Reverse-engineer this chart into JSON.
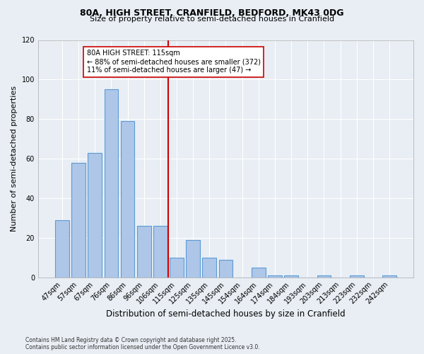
{
  "title1": "80A, HIGH STREET, CRANFIELD, BEDFORD, MK43 0DG",
  "title2": "Size of property relative to semi-detached houses in Cranfield",
  "xlabel": "Distribution of semi-detached houses by size in Cranfield",
  "ylabel": "Number of semi-detached properties",
  "categories": [
    "47sqm",
    "57sqm",
    "67sqm",
    "76sqm",
    "86sqm",
    "96sqm",
    "106sqm",
    "115sqm",
    "125sqm",
    "135sqm",
    "145sqm",
    "154sqm",
    "164sqm",
    "174sqm",
    "184sqm",
    "193sqm",
    "203sqm",
    "213sqm",
    "223sqm",
    "232sqm",
    "242sqm"
  ],
  "values": [
    29,
    58,
    63,
    95,
    79,
    26,
    26,
    10,
    19,
    10,
    9,
    0,
    5,
    1,
    1,
    0,
    1,
    0,
    1,
    0,
    1
  ],
  "bar_color": "#aec6e8",
  "bar_edge_color": "#5b9bd5",
  "bg_color": "#e8eef4",
  "grid_color": "#ffffff",
  "vline_color": "#cc0000",
  "annotation_title": "80A HIGH STREET: 115sqm",
  "annotation_line1": "← 88% of semi-detached houses are smaller (372)",
  "annotation_line2": "11% of semi-detached houses are larger (47) →",
  "annotation_box_color": "#ffffff",
  "annotation_box_edge": "#cc0000",
  "ylim": [
    0,
    120
  ],
  "yticks": [
    0,
    20,
    40,
    60,
    80,
    100,
    120
  ],
  "footer1": "Contains HM Land Registry data © Crown copyright and database right 2025.",
  "footer2": "Contains public sector information licensed under the Open Government Licence v3.0."
}
